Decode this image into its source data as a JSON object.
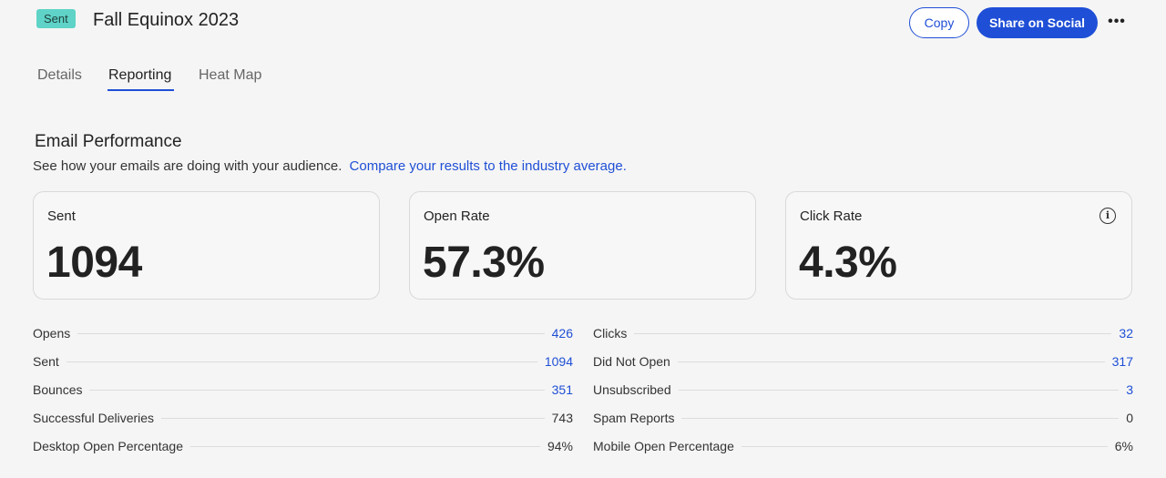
{
  "header": {
    "status_badge": "Sent",
    "title": "Fall Equinox 2023",
    "copy_label": "Copy",
    "share_label": "Share on Social",
    "more_label": "•••"
  },
  "tabs": [
    {
      "label": "Details",
      "active": false
    },
    {
      "label": "Reporting",
      "active": true
    },
    {
      "label": "Heat Map",
      "active": false
    }
  ],
  "section": {
    "title": "Email Performance",
    "subtitle": "See how your emails are doing with your audience.",
    "link": "Compare your results to the industry average."
  },
  "cards": [
    {
      "label": "Sent",
      "value": "1094"
    },
    {
      "label": "Open Rate",
      "value": "57.3%"
    },
    {
      "label": "Click Rate",
      "value": "4.3%",
      "info_icon": "info-icon"
    }
  ],
  "stats_left": [
    {
      "label": "Opens",
      "value": "426",
      "link": true
    },
    {
      "label": "Sent",
      "value": "1094",
      "link": true
    },
    {
      "label": "Bounces",
      "value": "351",
      "link": true
    },
    {
      "label": "Successful Deliveries",
      "value": "743",
      "link": false
    },
    {
      "label": "Desktop Open Percentage",
      "value": "94%",
      "link": false
    }
  ],
  "stats_right": [
    {
      "label": "Clicks",
      "value": "32",
      "link": true
    },
    {
      "label": "Did Not Open",
      "value": "317",
      "link": true
    },
    {
      "label": "Unsubscribed",
      "value": "3",
      "link": true
    },
    {
      "label": "Spam Reports",
      "value": "0",
      "link": false
    },
    {
      "label": "Mobile Open Percentage",
      "value": "6%",
      "link": false
    }
  ],
  "colors": {
    "accent": "#1f4fd6",
    "badge": "#5fd3c7",
    "background": "#f5f5f5"
  }
}
